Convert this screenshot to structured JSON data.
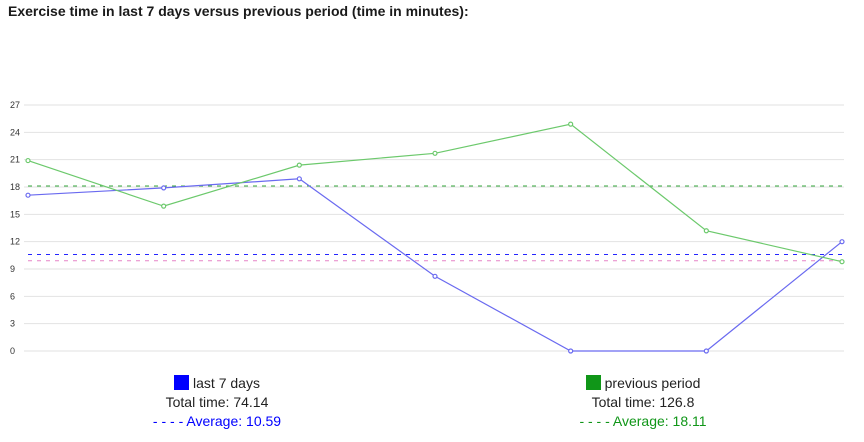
{
  "title": "Exercise time in last 7 days versus previous period (time in minutes):",
  "chart_data": {
    "type": "line",
    "title": "Exercise time in last 7 days versus previous period (time in minutes):",
    "x": [
      1,
      2,
      3,
      4,
      5,
      6,
      7
    ],
    "ylim": [
      0,
      27
    ],
    "yticks": [
      0,
      3,
      6,
      9,
      12,
      15,
      18,
      21,
      24,
      27
    ],
    "grid": true,
    "legend_position": "bottom",
    "series": [
      {
        "name": "last 7 days",
        "color": "#0000ff",
        "line_color": "#6a6af0",
        "values": [
          17.1,
          17.9,
          18.9,
          8.2,
          0,
          0,
          12.0
        ],
        "average": 10.59
      },
      {
        "name": "previous period",
        "color": "#109618",
        "line_color": "#6cc96c",
        "values": [
          20.9,
          15.9,
          20.4,
          21.7,
          24.9,
          13.2,
          9.8
        ],
        "average": 18.11
      }
    ],
    "extra_reference_lines": [
      {
        "value": 9.9,
        "color": "#e377c2",
        "style": "dashed"
      }
    ]
  },
  "legend": [
    {
      "label": "last 7 days",
      "total": "Total time: 74.14",
      "average": "- - - - Average: 10.59",
      "color": "#0000ff"
    },
    {
      "label": "previous period",
      "total": "Total time: 126.8",
      "average": "- - - - Average: 18.11",
      "color": "#109618"
    }
  ]
}
